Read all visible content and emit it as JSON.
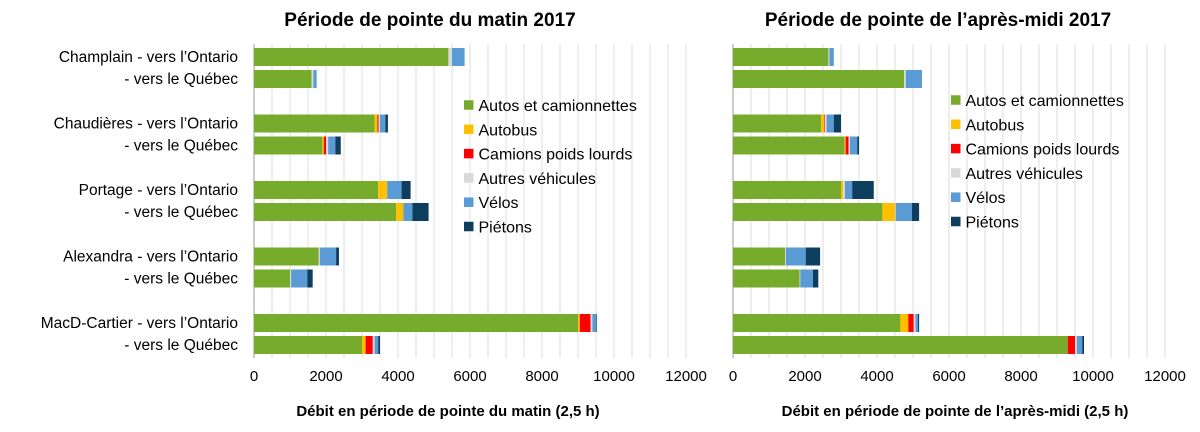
{
  "chart_data": [
    {
      "type": "bar",
      "orientation": "horizontal",
      "stacked": true,
      "title": "Période de pointe du matin 2017",
      "xlabel": "Débit en période de pointe du matin (2,5 h)",
      "xlim": [
        0,
        12000
      ],
      "xticks": [
        "0",
        "2000",
        "4000",
        "6000",
        "8000",
        "10000",
        "12000"
      ],
      "grid": true,
      "legend_position": "right",
      "categories": [
        "Champlain - vers l’Ontario",
        "- vers le Québec",
        "Chaudières - vers l’Ontario",
        "- vers le Québec",
        "Portage - vers l’Ontario",
        "- vers le Québec",
        "Alexandra - vers l’Ontario",
        "- vers le Québec",
        "MacD-Cartier - vers l’Ontario",
        "- vers le Québec"
      ],
      "series": [
        {
          "name": "Autos et camionnettes",
          "color": "#77ab2c",
          "values": [
            5400,
            1600,
            3350,
            1900,
            3450,
            3950,
            1800,
            1000,
            9000,
            3000
          ]
        },
        {
          "name": "Autobus",
          "color": "#ffc000",
          "values": [
            0,
            0,
            80,
            40,
            250,
            200,
            0,
            0,
            50,
            100
          ]
        },
        {
          "name": "Camions poids lourds",
          "color": "#ff0000",
          "values": [
            0,
            0,
            30,
            60,
            0,
            0,
            0,
            0,
            300,
            200
          ]
        },
        {
          "name": "Autres véhicules",
          "color": "#d9d9d9",
          "values": [
            100,
            50,
            40,
            60,
            0,
            0,
            30,
            30,
            50,
            50
          ]
        },
        {
          "name": "Vélos",
          "color": "#5b9bd5",
          "values": [
            350,
            90,
            150,
            200,
            400,
            250,
            450,
            450,
            100,
            100
          ]
        },
        {
          "name": "Piétons",
          "color": "#0e3e5e",
          "values": [
            0,
            0,
            70,
            150,
            250,
            450,
            80,
            150,
            20,
            50
          ]
        }
      ]
    },
    {
      "type": "bar",
      "orientation": "horizontal",
      "stacked": true,
      "title": "Période de pointe de l’après-midi 2017",
      "xlabel": "Débit en période de pointe de l’après-midi (2,5 h)",
      "xlim": [
        0,
        12000
      ],
      "xticks": [
        "0",
        "2000",
        "4000",
        "6000",
        "8000",
        "10000",
        "12000"
      ],
      "grid": true,
      "legend_position": "right",
      "categories": [
        "Champlain - vers l’Ontario",
        "- vers le Québec",
        "Chaudières - vers l’Ontario",
        "- vers le Québec",
        "Portage - vers l’Ontario",
        "- vers le Québec",
        "Alexandra - vers l’Ontario",
        "- vers le Québec",
        "MacD-Cartier - vers l’Ontario",
        "- vers le Québec"
      ],
      "series": [
        {
          "name": "Autos et camionnettes",
          "color": "#77ab2c",
          "values": [
            2650,
            4750,
            2450,
            3100,
            3000,
            4150,
            1450,
            1850,
            4650,
            9300
          ]
        },
        {
          "name": "Autobus",
          "color": "#ffc000",
          "values": [
            0,
            0,
            80,
            30,
            60,
            350,
            0,
            0,
            220,
            0
          ]
        },
        {
          "name": "Camions poids lourds",
          "color": "#ff0000",
          "values": [
            0,
            0,
            20,
            80,
            0,
            0,
            0,
            0,
            150,
            200
          ]
        },
        {
          "name": "Autres véhicules",
          "color": "#d9d9d9",
          "values": [
            30,
            50,
            50,
            40,
            50,
            20,
            20,
            20,
            50,
            50
          ]
        },
        {
          "name": "Vélos",
          "color": "#5b9bd5",
          "values": [
            120,
            450,
            200,
            200,
            200,
            450,
            550,
            350,
            70,
            150
          ]
        },
        {
          "name": "Piétons",
          "color": "#0e3e5e",
          "values": [
            0,
            0,
            200,
            50,
            600,
            200,
            400,
            150,
            30,
            50
          ]
        }
      ]
    }
  ]
}
